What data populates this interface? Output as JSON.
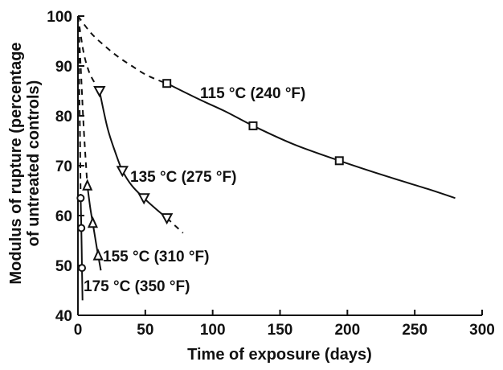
{
  "chart_data": {
    "type": "scatter",
    "title": "",
    "xlabel": "Time of exposure (days)",
    "ylabel_lines": [
      "Modulus of rupture (percentage",
      "of untreated controls)"
    ],
    "xlim": [
      0,
      300
    ],
    "ylim": [
      40,
      100
    ],
    "xticks": [
      0,
      50,
      100,
      150,
      200,
      250,
      300
    ],
    "yticks": [
      40,
      50,
      60,
      70,
      80,
      90,
      100
    ],
    "grid": false,
    "colors": {
      "ink": "#111111",
      "background": "#ffffff"
    },
    "series": [
      {
        "name": "115 °C (240 °F)",
        "marker": "square",
        "points": [
          [
            66,
            86.5
          ],
          [
            130,
            78
          ],
          [
            194,
            71
          ]
        ],
        "dashed_curve": [
          [
            0,
            100
          ],
          [
            10,
            96.5
          ],
          [
            20,
            94
          ],
          [
            30,
            91.8
          ],
          [
            40,
            90
          ],
          [
            50,
            88.3
          ],
          [
            60,
            87.1
          ],
          [
            66,
            86.5
          ]
        ],
        "solid_curve": [
          [
            66,
            86.5
          ],
          [
            90,
            83.3
          ],
          [
            110,
            80.8
          ],
          [
            130,
            78
          ],
          [
            160,
            74.3
          ],
          [
            194,
            71
          ],
          [
            230,
            67.8
          ],
          [
            260,
            65.3
          ],
          [
            280,
            63.5
          ]
        ]
      },
      {
        "name": "135 °C (275 °F)",
        "marker": "triangle-down",
        "points": [
          [
            16,
            85
          ],
          [
            33,
            69
          ],
          [
            49,
            63.5
          ],
          [
            66,
            59.5
          ]
        ],
        "dashed_curve": [
          [
            0,
            100
          ],
          [
            4,
            93
          ],
          [
            8,
            89
          ],
          [
            12,
            86.8
          ],
          [
            16,
            85
          ]
        ],
        "solid_curve": [
          [
            16,
            85
          ],
          [
            22,
            77.5
          ],
          [
            28,
            72.5
          ],
          [
            33,
            69
          ],
          [
            40,
            66
          ],
          [
            49,
            63.5
          ],
          [
            58,
            61.3
          ],
          [
            66,
            59.5
          ]
        ],
        "dashed_tail": [
          [
            66,
            59.5
          ],
          [
            72,
            58
          ],
          [
            78,
            56.5
          ]
        ]
      },
      {
        "name": "155 °C (310 °F)",
        "marker": "triangle-up",
        "points": [
          [
            7,
            66
          ],
          [
            11,
            58.5
          ],
          [
            15,
            52
          ]
        ],
        "dashed_curve": [
          [
            0,
            100
          ],
          [
            2,
            90
          ],
          [
            4,
            79
          ],
          [
            6,
            70
          ],
          [
            7,
            66
          ]
        ],
        "solid_curve": [
          [
            7,
            66
          ],
          [
            9,
            61.8
          ],
          [
            11,
            58.5
          ],
          [
            13,
            55.2
          ],
          [
            15,
            52
          ],
          [
            17,
            49
          ]
        ]
      },
      {
        "name": "175 °C (350 °F)",
        "marker": "circle",
        "points": [
          [
            2,
            63.5
          ],
          [
            2.5,
            57.5
          ],
          [
            3,
            49.5
          ]
        ],
        "dashed_curve": [
          [
            0,
            100
          ],
          [
            0.6,
            92
          ],
          [
            1,
            85
          ],
          [
            1.5,
            77
          ],
          [
            2,
            63.5
          ]
        ],
        "solid_curve": [
          [
            2,
            63.5
          ],
          [
            2.5,
            57.5
          ],
          [
            3,
            49.5
          ],
          [
            3.4,
            43
          ]
        ]
      }
    ]
  }
}
